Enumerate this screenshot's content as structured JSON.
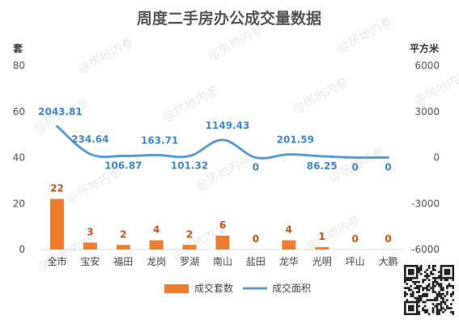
{
  "chart_data": {
    "type": "bar+line",
    "title": "周度二手房办公成交量数据",
    "left_axis": {
      "unit": "套",
      "ticks": [
        0,
        20,
        40,
        60,
        80
      ],
      "range": [
        0,
        80
      ]
    },
    "right_axis": {
      "unit": "平方米",
      "ticks": [
        -6000,
        -3000,
        0,
        3000,
        6000
      ],
      "range": [
        -6000,
        6000
      ]
    },
    "categories": [
      "全市",
      "宝安",
      "福田",
      "龙岗",
      "罗湖",
      "南山",
      "盐田",
      "龙华",
      "光明",
      "坪山",
      "大鹏"
    ],
    "series": [
      {
        "name": "成交套数",
        "type": "bar",
        "axis": "left",
        "color": "#ed7d31",
        "values": [
          22,
          3,
          2,
          4,
          2,
          6,
          0,
          4,
          1,
          0,
          0
        ],
        "labels": [
          "22",
          "3",
          "2",
          "4",
          "2",
          "6",
          "0",
          "4",
          "1",
          "0",
          "0"
        ]
      },
      {
        "name": "成交面积",
        "type": "line",
        "axis": "right",
        "color": "#5b9bd5",
        "smooth": true,
        "values": [
          2043.81,
          234.64,
          106.87,
          163.71,
          101.32,
          1149.43,
          0,
          201.59,
          86.25,
          0,
          0
        ],
        "labels": [
          "2043.81",
          "234.64",
          "106.87",
          "163.71",
          "101.32",
          "1149.43",
          "0",
          "201.59",
          "86.25",
          "0",
          "0"
        ]
      }
    ],
    "legend": {
      "position": "bottom",
      "items": [
        "成交套数",
        "成交面积"
      ]
    },
    "grid": false
  },
  "watermark": {
    "text": "@房地内参"
  }
}
